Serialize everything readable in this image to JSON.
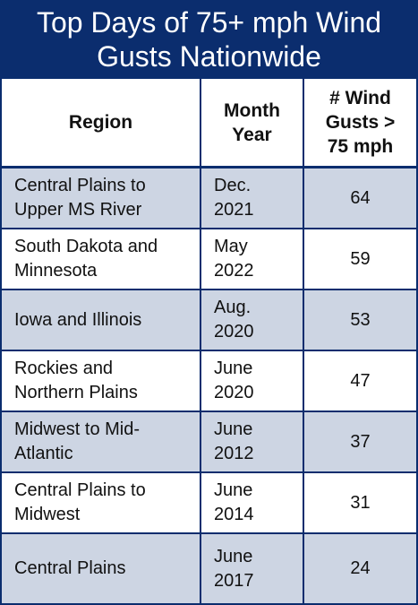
{
  "header": {
    "title": "Top Days of 75+ mph Wind Gusts Nationwide"
  },
  "table": {
    "columns": [
      "Region",
      "Month\nYear",
      "# Wind\nGusts >\n75 mph"
    ],
    "rows": [
      [
        "Central Plains to\nUpper MS River",
        "Dec.\n2021",
        64
      ],
      [
        "South Dakota and\nMinnesota",
        "May\n2022",
        59
      ],
      [
        "Iowa and Illinois",
        "Aug.\n2020",
        53
      ],
      [
        "Rockies and\nNorthern Plains",
        "June\n2020",
        47
      ],
      [
        "Midwest to Mid-\nAtlantic",
        "June\n2012",
        37
      ],
      [
        "Central Plains to\nMidwest",
        "June\n2014",
        31
      ],
      [
        "Central Plains",
        "June\n2017",
        24
      ]
    ]
  }
}
